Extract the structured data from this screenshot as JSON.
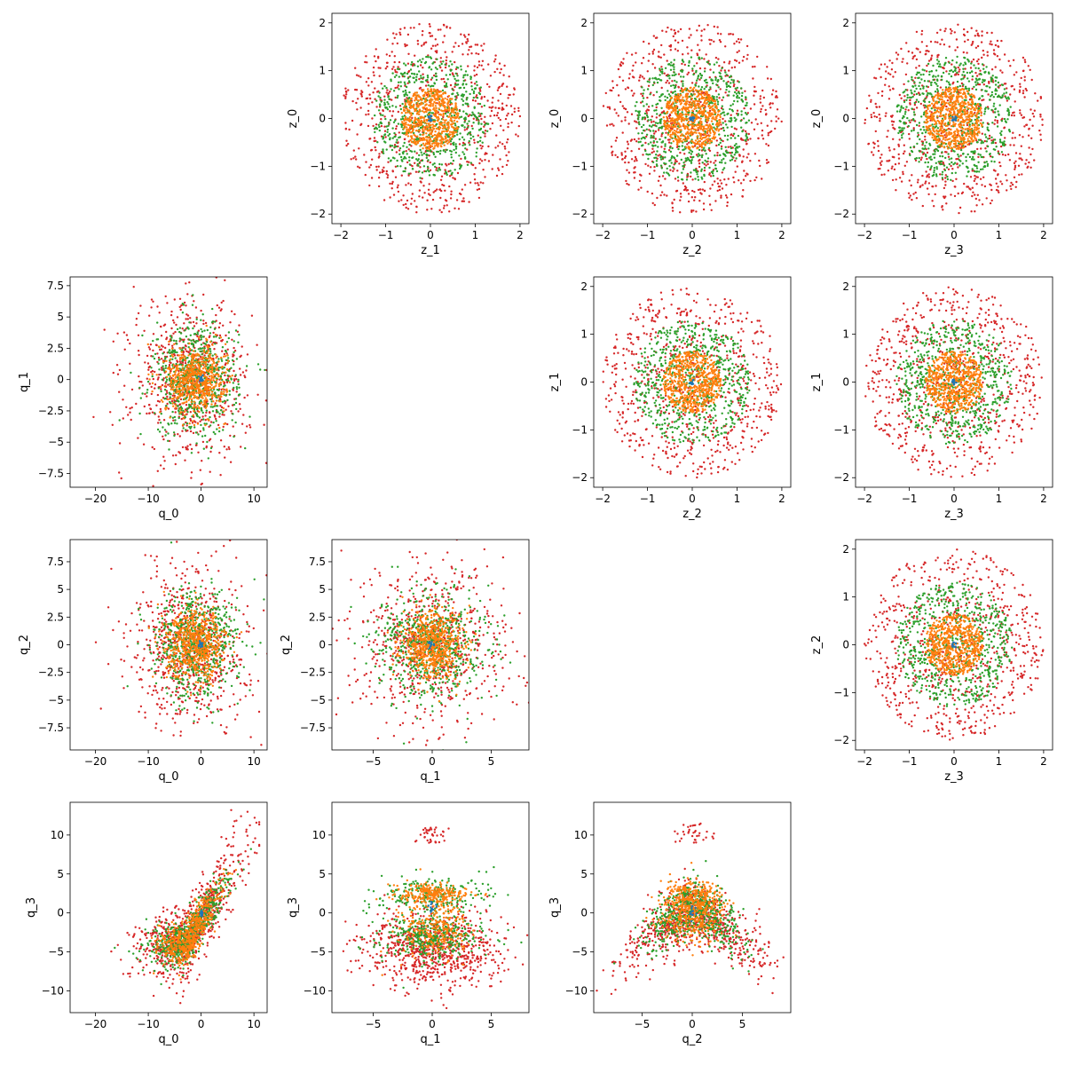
{
  "chart_data": [
    {
      "type": "scatter",
      "xlabel": "z_1",
      "ylabel": "z_0",
      "xlim": [
        -2.2,
        2.2
      ],
      "ylim": [
        -2.2,
        2.2
      ],
      "xticks": [
        -2,
        -1,
        0,
        1,
        2
      ],
      "yticks": [
        -2,
        -1,
        0,
        1,
        2
      ],
      "pattern": "disk",
      "series": [
        {
          "color": "#d62728",
          "radius": 2.0,
          "count": 700
        },
        {
          "color": "#2ca02c",
          "radius": 1.3,
          "count": 650
        },
        {
          "color": "#ff7f0e",
          "radius": 0.65,
          "count": 600
        },
        {
          "color": "#1f77b4",
          "radius": 0.06,
          "count": 12
        }
      ]
    },
    {
      "type": "scatter",
      "xlabel": "z_2",
      "ylabel": "z_0",
      "xlim": [
        -2.2,
        2.2
      ],
      "ylim": [
        -2.2,
        2.2
      ],
      "xticks": [
        -2,
        -1,
        0,
        1,
        2
      ],
      "yticks": [
        -2,
        -1,
        0,
        1,
        2
      ],
      "pattern": "disk",
      "series": [
        {
          "color": "#d62728",
          "radius": 2.0,
          "count": 700
        },
        {
          "color": "#2ca02c",
          "radius": 1.3,
          "count": 650
        },
        {
          "color": "#ff7f0e",
          "radius": 0.65,
          "count": 600
        },
        {
          "color": "#1f77b4",
          "radius": 0.06,
          "count": 12
        }
      ]
    },
    {
      "type": "scatter",
      "xlabel": "z_3",
      "ylabel": "z_0",
      "xlim": [
        -2.2,
        2.2
      ],
      "ylim": [
        -2.2,
        2.2
      ],
      "xticks": [
        -2,
        -1,
        0,
        1,
        2
      ],
      "yticks": [
        -2,
        -1,
        0,
        1,
        2
      ],
      "pattern": "disk",
      "series": [
        {
          "color": "#d62728",
          "radius": 2.0,
          "count": 700
        },
        {
          "color": "#2ca02c",
          "radius": 1.3,
          "count": 650
        },
        {
          "color": "#ff7f0e",
          "radius": 0.65,
          "count": 600
        },
        {
          "color": "#1f77b4",
          "radius": 0.06,
          "count": 12
        }
      ]
    },
    {
      "type": "scatter",
      "xlabel": "q_0",
      "ylabel": "q_1",
      "xlim": [
        -24.8,
        12.5
      ],
      "ylim": [
        -8.6,
        8.2
      ],
      "xticks": [
        -20,
        -10,
        0,
        10
      ],
      "yticks": [
        -7.5,
        -5.0,
        -2.5,
        0.0,
        2.5,
        5.0,
        7.5
      ],
      "pattern": "gauss",
      "series": [
        {
          "color": "#d62728",
          "sx": 5.5,
          "sy": 3.2,
          "cx": -2,
          "cy": 0,
          "count": 700
        },
        {
          "color": "#2ca02c",
          "sx": 4.0,
          "sy": 2.2,
          "cx": -1,
          "cy": 0,
          "count": 650
        },
        {
          "color": "#ff7f0e",
          "sx": 2.8,
          "sy": 1.3,
          "cx": -1,
          "cy": 0,
          "count": 600
        },
        {
          "color": "#1f77b4",
          "sx": 0.2,
          "sy": 0.2,
          "cx": 0,
          "cy": 0,
          "count": 12
        }
      ]
    },
    {
      "type": "scatter",
      "xlabel": "z_2",
      "ylabel": "z_1",
      "xlim": [
        -2.2,
        2.2
      ],
      "ylim": [
        -2.2,
        2.2
      ],
      "xticks": [
        -2,
        -1,
        0,
        1,
        2
      ],
      "yticks": [
        -2,
        -1,
        0,
        1,
        2
      ],
      "pattern": "disk",
      "series": [
        {
          "color": "#d62728",
          "radius": 2.0,
          "count": 700
        },
        {
          "color": "#2ca02c",
          "radius": 1.3,
          "count": 650
        },
        {
          "color": "#ff7f0e",
          "radius": 0.65,
          "count": 600
        },
        {
          "color": "#1f77b4",
          "radius": 0.06,
          "count": 12
        }
      ]
    },
    {
      "type": "scatter",
      "xlabel": "z_3",
      "ylabel": "z_1",
      "xlim": [
        -2.2,
        2.2
      ],
      "ylim": [
        -2.2,
        2.2
      ],
      "xticks": [
        -2,
        -1,
        0,
        1,
        2
      ],
      "yticks": [
        -2,
        -1,
        0,
        1,
        2
      ],
      "pattern": "disk",
      "series": [
        {
          "color": "#d62728",
          "radius": 2.0,
          "count": 700
        },
        {
          "color": "#2ca02c",
          "radius": 1.3,
          "count": 650
        },
        {
          "color": "#ff7f0e",
          "radius": 0.65,
          "count": 600
        },
        {
          "color": "#1f77b4",
          "radius": 0.06,
          "count": 12
        }
      ]
    },
    {
      "type": "scatter",
      "xlabel": "q_0",
      "ylabel": "q_2",
      "xlim": [
        -24.8,
        12.5
      ],
      "ylim": [
        -9.5,
        9.5
      ],
      "xticks": [
        -20,
        -10,
        0,
        10
      ],
      "yticks": [
        -7.5,
        -5.0,
        -2.5,
        0.0,
        2.5,
        5.0,
        7.5
      ],
      "pattern": "gauss",
      "series": [
        {
          "color": "#d62728",
          "sx": 5.5,
          "sy": 3.6,
          "cx": -2,
          "cy": 0,
          "count": 700
        },
        {
          "color": "#2ca02c",
          "sx": 4.0,
          "sy": 2.4,
          "cx": -1,
          "cy": 0,
          "count": 650
        },
        {
          "color": "#ff7f0e",
          "sx": 2.8,
          "sy": 1.5,
          "cx": -1,
          "cy": 0,
          "count": 600
        },
        {
          "color": "#1f77b4",
          "sx": 0.2,
          "sy": 0.2,
          "cx": 0,
          "cy": 0,
          "count": 12
        }
      ]
    },
    {
      "type": "scatter",
      "xlabel": "q_1",
      "ylabel": "q_2",
      "xlim": [
        -8.5,
        8.2
      ],
      "ylim": [
        -9.5,
        9.5
      ],
      "xticks": [
        -5,
        0,
        5
      ],
      "yticks": [
        -7.5,
        -5.0,
        -2.5,
        0.0,
        2.5,
        5.0,
        7.5
      ],
      "pattern": "gauss",
      "series": [
        {
          "color": "#d62728",
          "sx": 3.2,
          "sy": 3.6,
          "cx": 0,
          "cy": 0,
          "count": 700
        },
        {
          "color": "#2ca02c",
          "sx": 2.2,
          "sy": 2.4,
          "cx": 0,
          "cy": 0,
          "count": 650
        },
        {
          "color": "#ff7f0e",
          "sx": 1.3,
          "sy": 1.5,
          "cx": 0,
          "cy": 0,
          "count": 600
        },
        {
          "color": "#1f77b4",
          "sx": 0.2,
          "sy": 0.2,
          "cx": 0,
          "cy": 0,
          "count": 12
        }
      ]
    },
    {
      "type": "scatter",
      "xlabel": "z_3",
      "ylabel": "z_2",
      "xlim": [
        -2.2,
        2.2
      ],
      "ylim": [
        -2.2,
        2.2
      ],
      "xticks": [
        -2,
        -1,
        0,
        1,
        2
      ],
      "yticks": [
        -2,
        -1,
        0,
        1,
        2
      ],
      "pattern": "disk",
      "series": [
        {
          "color": "#d62728",
          "radius": 2.0,
          "count": 700
        },
        {
          "color": "#2ca02c",
          "radius": 1.3,
          "count": 650
        },
        {
          "color": "#ff7f0e",
          "radius": 0.65,
          "count": 600
        },
        {
          "color": "#1f77b4",
          "radius": 0.06,
          "count": 12
        }
      ]
    },
    {
      "type": "scatter",
      "xlabel": "q_0",
      "ylabel": "q_3",
      "xlim": [
        -24.8,
        12.5
      ],
      "ylim": [
        -12.8,
        14.2
      ],
      "xticks": [
        -20,
        -10,
        0,
        10
      ],
      "yticks": [
        -10,
        -5,
        0,
        5,
        10
      ],
      "pattern": "diagonal",
      "series": [
        {
          "color": "#d62728",
          "count": 800
        },
        {
          "color": "#2ca02c",
          "count": 600
        },
        {
          "color": "#ff7f0e",
          "count": 500
        },
        {
          "color": "#1f77b4",
          "count": 12
        }
      ]
    },
    {
      "type": "scatter",
      "xlabel": "q_1",
      "ylabel": "q_3",
      "xlim": [
        -8.5,
        8.2
      ],
      "ylim": [
        -12.8,
        14.2
      ],
      "xticks": [
        -5,
        0,
        5
      ],
      "yticks": [
        -10,
        -5,
        0,
        5,
        10
      ],
      "pattern": "hat",
      "series": [
        {
          "color": "#d62728",
          "count": 800
        },
        {
          "color": "#2ca02c",
          "count": 600
        },
        {
          "color": "#ff7f0e",
          "count": 500
        },
        {
          "color": "#1f77b4",
          "count": 12
        }
      ]
    },
    {
      "type": "scatter",
      "xlabel": "q_2",
      "ylabel": "q_3",
      "xlim": [
        -9.8,
        9.8
      ],
      "ylim": [
        -12.8,
        14.2
      ],
      "xticks": [
        -5,
        0,
        5
      ],
      "yticks": [
        -10,
        -5,
        0,
        5,
        10
      ],
      "pattern": "vee",
      "series": [
        {
          "color": "#d62728",
          "count": 800
        },
        {
          "color": "#2ca02c",
          "count": 600
        },
        {
          "color": "#ff7f0e",
          "count": 500
        },
        {
          "color": "#1f77b4",
          "count": 12
        }
      ]
    }
  ]
}
